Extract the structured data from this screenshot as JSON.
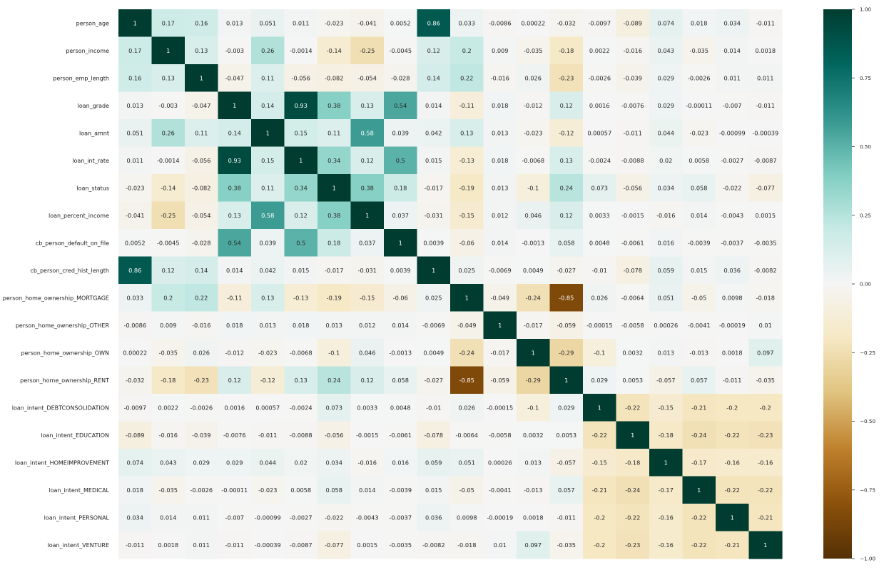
{
  "chart_data": {
    "type": "heatmap",
    "title": "",
    "xlabel": "",
    "ylabel": "",
    "labels": [
      "person_age",
      "person_income",
      "person_emp_length",
      "loan_grade",
      "loan_amnt",
      "loan_int_rate",
      "loan_status",
      "loan_percent_income",
      "cb_person_default_on_file",
      "cb_person_cred_hist_length",
      "person_home_ownership_MORTGAGE",
      "person_home_ownership_OTHER",
      "person_home_ownership_OWN",
      "person_home_ownership_RENT",
      "loan_intent_DEBTCONSOLIDATION",
      "loan_intent_EDUCATION",
      "loan_intent_HOMEIMPROVEMENT",
      "loan_intent_MEDICAL",
      "loan_intent_PERSONAL",
      "loan_intent_VENTURE"
    ],
    "x_tick_labels_visible": false,
    "value_range": [
      -1,
      1
    ],
    "colormap": "BrBG",
    "colormap_stops": [
      "#543005",
      "#8c510a",
      "#bf812d",
      "#dfc27d",
      "#f6e8c3",
      "#f5f5f5",
      "#c7eae5",
      "#80cdc1",
      "#35978f",
      "#01665e",
      "#003c30"
    ],
    "colorbar": {
      "position": "right",
      "ticks": [
        1.0,
        0.75,
        0.5,
        0.25,
        0.0,
        -0.25,
        -0.5,
        -0.75,
        -1.0
      ],
      "tick_labels": [
        "1.00",
        "0.75",
        "0.50",
        "0.25",
        "0.00",
        "−0.25",
        "−0.50",
        "−0.75",
        "−1.00"
      ]
    },
    "values": [
      [
        "1",
        "0.17",
        "0.16",
        "0.013",
        "0.051",
        "0.011",
        "-0.023",
        "-0.041",
        "0.0052",
        "0.86",
        "0.033",
        "-0.0086",
        "0.00022",
        "-0.032",
        "-0.0097",
        "-0.089",
        "0.074",
        "0.018",
        "0.034",
        "-0.011"
      ],
      [
        "0.17",
        "1",
        "0.13",
        "-0.003",
        "0.26",
        "-0.0014",
        "-0.14",
        "-0.25",
        "-0.0045",
        "0.12",
        "0.2",
        "0.009",
        "-0.035",
        "-0.18",
        "0.0022",
        "-0.016",
        "0.043",
        "-0.035",
        "0.014",
        "0.0018"
      ],
      [
        "0.16",
        "0.13",
        "1",
        "-0.047",
        "0.11",
        "-0.056",
        "-0.082",
        "-0.054",
        "-0.028",
        "0.14",
        "0.22",
        "-0.016",
        "0.026",
        "-0.23",
        "-0.0026",
        "-0.039",
        "0.029",
        "-0.0026",
        "0.011",
        "0.011"
      ],
      [
        "0.013",
        "-0.003",
        "-0.047",
        "1",
        "0.14",
        "0.93",
        "0.38",
        "0.13",
        "0.54",
        "0.014",
        "-0.11",
        "0.018",
        "-0.012",
        "0.12",
        "0.0016",
        "-0.0076",
        "0.029",
        "-0.00011",
        "-0.007",
        "-0.011"
      ],
      [
        "0.051",
        "0.26",
        "0.11",
        "0.14",
        "1",
        "0.15",
        "0.11",
        "0.58",
        "0.039",
        "0.042",
        "0.13",
        "0.013",
        "-0.023",
        "-0.12",
        "0.00057",
        "-0.011",
        "0.044",
        "-0.023",
        "-0.00099",
        "-0.00039"
      ],
      [
        "0.011",
        "-0.0014",
        "-0.056",
        "0.93",
        "0.15",
        "1",
        "0.34",
        "0.12",
        "0.5",
        "0.015",
        "-0.13",
        "0.018",
        "-0.0068",
        "0.13",
        "-0.0024",
        "-0.0088",
        "0.02",
        "0.0058",
        "-0.0027",
        "-0.0087"
      ],
      [
        "-0.023",
        "-0.14",
        "-0.082",
        "0.38",
        "0.11",
        "0.34",
        "1",
        "0.38",
        "0.18",
        "-0.017",
        "-0.19",
        "0.013",
        "-0.1",
        "0.24",
        "0.073",
        "-0.056",
        "0.034",
        "0.058",
        "-0.022",
        "-0.077"
      ],
      [
        "-0.041",
        "-0.25",
        "-0.054",
        "0.13",
        "0.58",
        "0.12",
        "0.38",
        "1",
        "0.037",
        "-0.031",
        "-0.15",
        "0.012",
        "0.046",
        "0.12",
        "0.0033",
        "-0.0015",
        "-0.016",
        "0.014",
        "-0.0043",
        "0.0015"
      ],
      [
        "0.0052",
        "-0.0045",
        "-0.028",
        "0.54",
        "0.039",
        "0.5",
        "0.18",
        "0.037",
        "1",
        "0.0039",
        "-0.06",
        "0.014",
        "-0.0013",
        "0.058",
        "0.0048",
        "-0.0061",
        "0.016",
        "-0.0039",
        "-0.0037",
        "-0.0035"
      ],
      [
        "0.86",
        "0.12",
        "0.14",
        "0.014",
        "0.042",
        "0.015",
        "-0.017",
        "-0.031",
        "0.0039",
        "1",
        "0.025",
        "-0.0069",
        "0.0049",
        "-0.027",
        "-0.01",
        "-0.078",
        "0.059",
        "0.015",
        "0.036",
        "-0.0082"
      ],
      [
        "0.033",
        "0.2",
        "0.22",
        "-0.11",
        "0.13",
        "-0.13",
        "-0.19",
        "-0.15",
        "-0.06",
        "0.025",
        "1",
        "-0.049",
        "-0.24",
        "-0.85",
        "0.026",
        "-0.0064",
        "0.051",
        "-0.05",
        "0.0098",
        "-0.018"
      ],
      [
        "-0.0086",
        "0.009",
        "-0.016",
        "0.018",
        "0.013",
        "0.018",
        "0.013",
        "0.012",
        "0.014",
        "-0.0069",
        "-0.049",
        "1",
        "-0.017",
        "-0.059",
        "-0.00015",
        "-0.0058",
        "0.00026",
        "-0.0041",
        "-0.00019",
        "0.01"
      ],
      [
        "0.00022",
        "-0.035",
        "0.026",
        "-0.012",
        "-0.023",
        "-0.0068",
        "-0.1",
        "0.046",
        "-0.0013",
        "0.0049",
        "-0.24",
        "-0.017",
        "1",
        "-0.29",
        "-0.1",
        "0.0032",
        "0.013",
        "-0.013",
        "0.0018",
        "0.097"
      ],
      [
        "-0.032",
        "-0.18",
        "-0.23",
        "0.12",
        "-0.12",
        "0.13",
        "0.24",
        "0.12",
        "0.058",
        "-0.027",
        "-0.85",
        "-0.059",
        "-0.29",
        "1",
        "0.029",
        "0.0053",
        "-0.057",
        "0.057",
        "-0.011",
        "-0.035"
      ],
      [
        "-0.0097",
        "0.0022",
        "-0.0026",
        "0.0016",
        "0.00057",
        "-0.0024",
        "0.073",
        "0.0033",
        "0.0048",
        "-0.01",
        "0.026",
        "-0.00015",
        "-0.1",
        "0.029",
        "1",
        "-0.22",
        "-0.15",
        "-0.21",
        "-0.2",
        "-0.2"
      ],
      [
        "-0.089",
        "-0.016",
        "-0.039",
        "-0.0076",
        "-0.011",
        "-0.0088",
        "-0.056",
        "-0.0015",
        "-0.0061",
        "-0.078",
        "-0.0064",
        "-0.0058",
        "0.0032",
        "0.0053",
        "-0.22",
        "1",
        "-0.18",
        "-0.24",
        "-0.22",
        "-0.23"
      ],
      [
        "0.074",
        "0.043",
        "0.029",
        "0.029",
        "0.044",
        "0.02",
        "0.034",
        "-0.016",
        "0.016",
        "0.059",
        "0.051",
        "0.00026",
        "0.013",
        "-0.057",
        "-0.15",
        "-0.18",
        "1",
        "-0.17",
        "-0.16",
        "-0.16"
      ],
      [
        "0.018",
        "-0.035",
        "-0.0026",
        "-0.00011",
        "-0.023",
        "0.0058",
        "0.058",
        "0.014",
        "-0.0039",
        "0.015",
        "-0.05",
        "-0.0041",
        "-0.013",
        "0.057",
        "-0.21",
        "-0.24",
        "-0.17",
        "1",
        "-0.22",
        "-0.22"
      ],
      [
        "0.034",
        "0.014",
        "0.011",
        "-0.007",
        "-0.00099",
        "-0.0027",
        "-0.022",
        "-0.0043",
        "-0.0037",
        "0.036",
        "0.0098",
        "-0.00019",
        "0.0018",
        "-0.011",
        "-0.2",
        "-0.22",
        "-0.16",
        "-0.22",
        "1",
        "-0.21"
      ],
      [
        "-0.011",
        "0.0018",
        "0.011",
        "-0.011",
        "-0.00039",
        "-0.0087",
        "-0.077",
        "0.0015",
        "-0.0035",
        "-0.0082",
        "-0.018",
        "0.01",
        "0.097",
        "-0.035",
        "-0.2",
        "-0.23",
        "-0.16",
        "-0.22",
        "-0.21",
        "1"
      ]
    ]
  }
}
